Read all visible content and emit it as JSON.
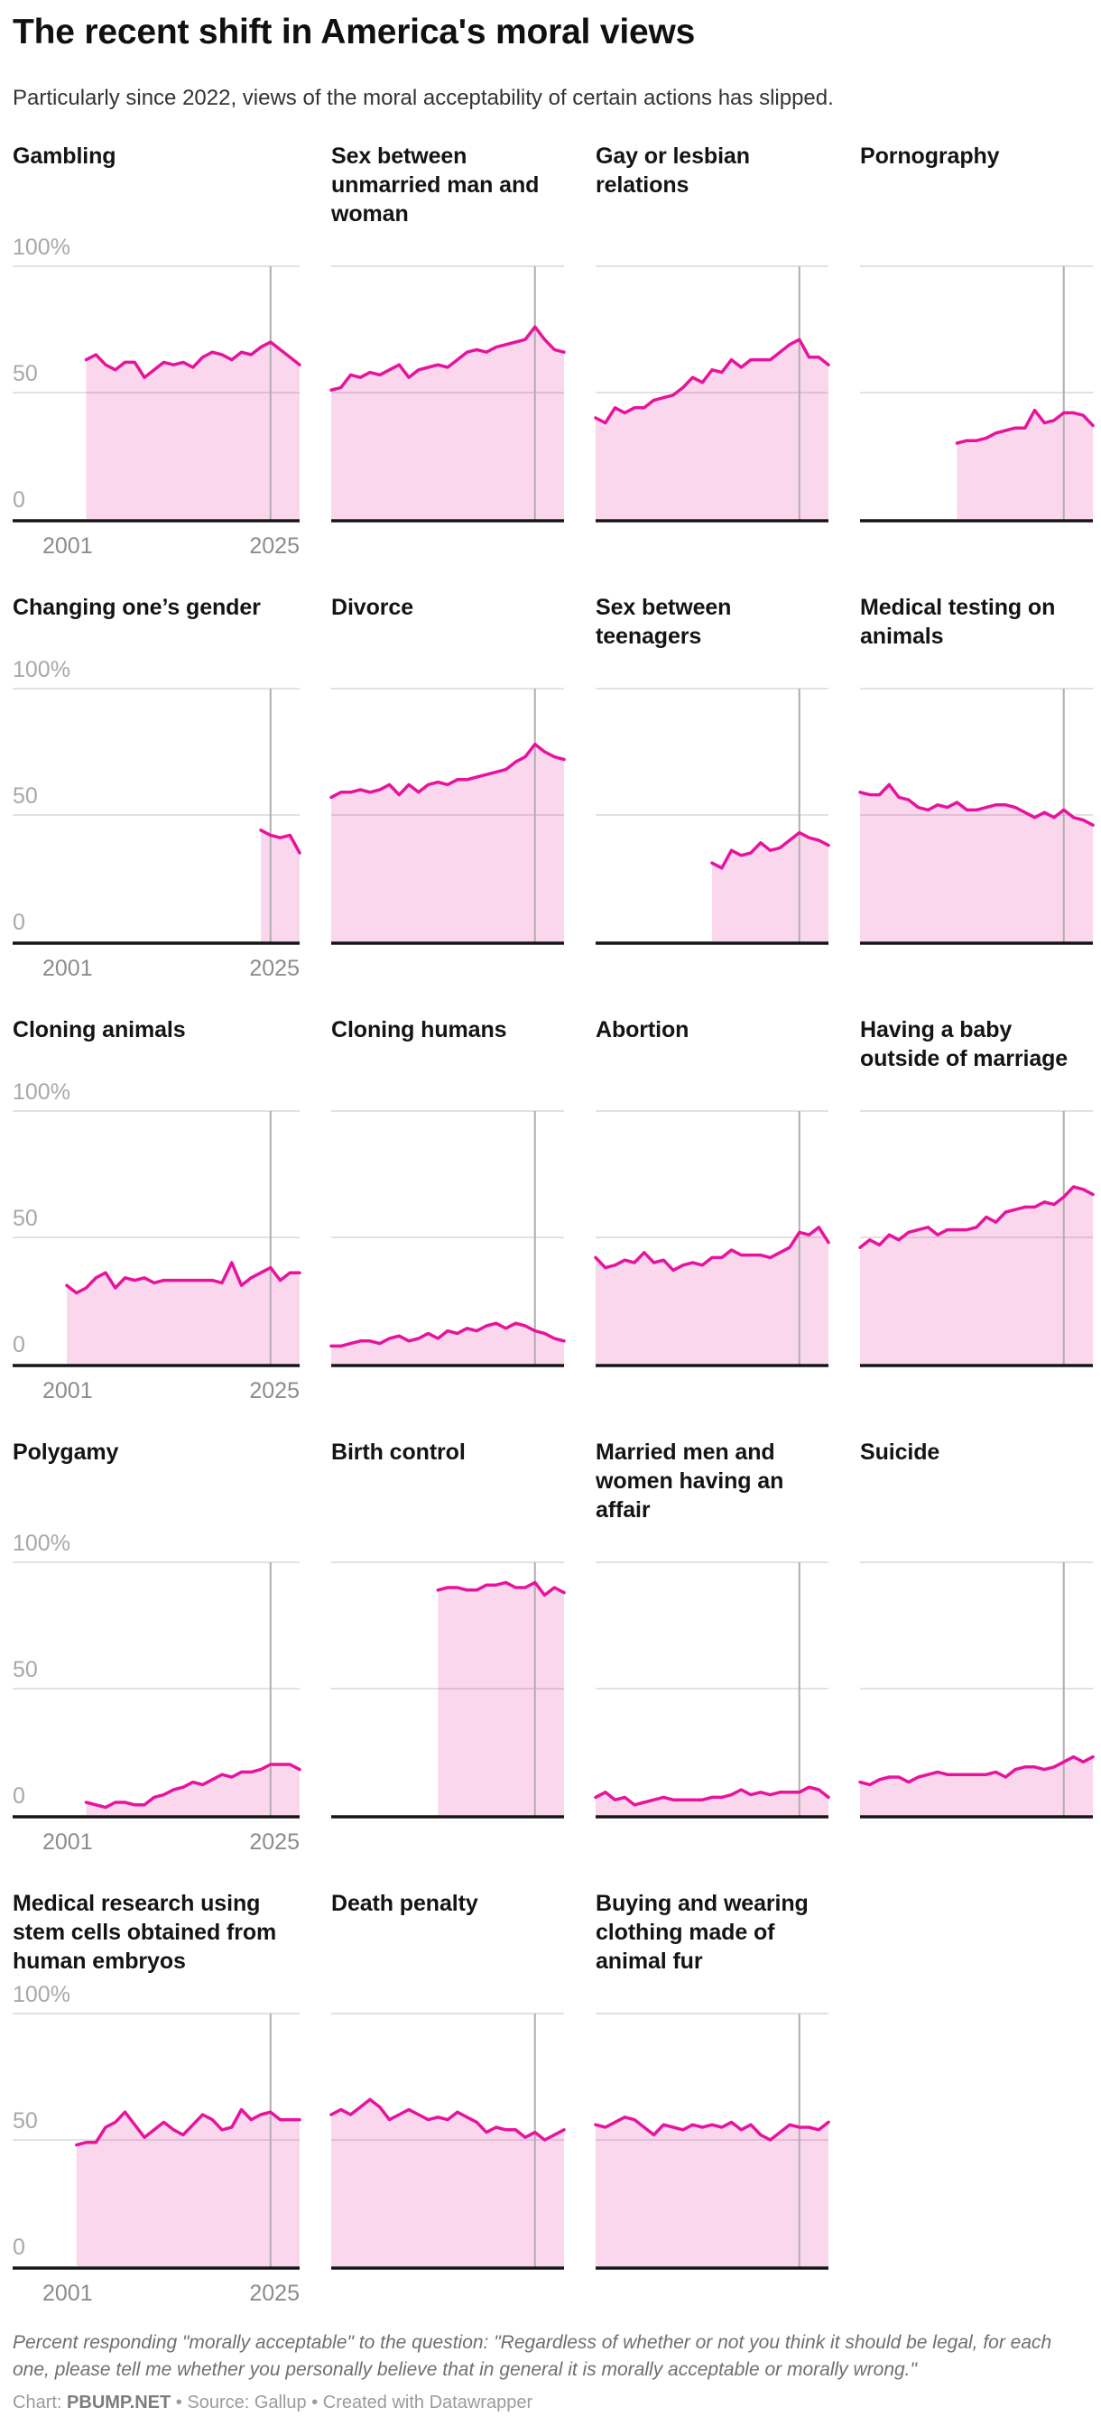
{
  "header": {
    "title": "The recent shift in America's moral views",
    "subtitle": "Particularly since 2022, views of the moral acceptability of certain actions has slipped."
  },
  "footer": {
    "footnote": "Percent responding \"morally acceptable\" to the question: \"Regardless of whether or not you think it should be legal, for each one, please tell me whether you personally believe that in general it is morally acceptable or morally wrong.\"",
    "byline_prefix": "Chart: ",
    "byline_brand": "PBUMP.NET",
    "byline_suffix": " • Source: Gallup • Created with Datawrapper"
  },
  "chart_data": {
    "type": "area",
    "layout": "small-multiples, 5 rows x 4 columns (last row has 3 panels)",
    "x_range": [
      2001,
      2025
    ],
    "ylim": [
      0,
      100
    ],
    "y_tick_labels": [
      "100%",
      "50",
      "0"
    ],
    "x_tick_labels": [
      "2001",
      "2025"
    ],
    "reference_line_year": 2022,
    "grid": "horizontal lines at 0, 50, 100; vertical gray reference line at 2022",
    "colors": {
      "line": "#e8139c",
      "fill": "rgba(232,18,156,0.17)",
      "gridline": "#d8d8d8",
      "reference_line": "#aeaeae",
      "baseline": "#151515",
      "y_labels": "#a8a8a8",
      "x_labels": "#8c8c8c"
    },
    "rows": [
      [
        0,
        1,
        2,
        3
      ],
      [
        4,
        5,
        6,
        7
      ],
      [
        8,
        9,
        10,
        11
      ],
      [
        12,
        13,
        14,
        15
      ],
      [
        16,
        17,
        18
      ]
    ],
    "charts": [
      {
        "title": "Gambling",
        "start_year": 2003,
        "values": [
          63,
          65,
          61,
          59,
          62,
          62,
          56,
          59,
          62,
          61,
          62,
          60,
          64,
          66,
          65,
          63,
          66,
          65,
          68,
          70,
          67,
          64,
          61
        ]
      },
      {
        "title": "Sex between unmarried man and woman",
        "start_year": 2001,
        "values": [
          51,
          52,
          57,
          56,
          58,
          57,
          59,
          61,
          56,
          59,
          60,
          61,
          60,
          63,
          66,
          67,
          66,
          68,
          69,
          70,
          71,
          76,
          71,
          67,
          66
        ]
      },
      {
        "title": "Gay or lesbian relations",
        "start_year": 2001,
        "values": [
          40,
          38,
          44,
          42,
          44,
          44,
          47,
          48,
          49,
          52,
          56,
          54,
          59,
          58,
          63,
          60,
          63,
          63,
          63,
          66,
          69,
          71,
          64,
          64,
          61
        ]
      },
      {
        "title": "Pornography",
        "start_year": 2011,
        "values": [
          30,
          31,
          31,
          32,
          34,
          35,
          36,
          36,
          43,
          38,
          39,
          42,
          42,
          41,
          37
        ]
      },
      {
        "title": "Changing one’s gender",
        "start_year": 2021,
        "values": [
          44,
          42,
          41,
          42,
          35
        ]
      },
      {
        "title": "Divorce",
        "start_year": 2001,
        "values": [
          57,
          59,
          59,
          60,
          59,
          60,
          62,
          58,
          62,
          59,
          62,
          63,
          62,
          64,
          64,
          65,
          66,
          67,
          68,
          71,
          73,
          78,
          75,
          73,
          72
        ]
      },
      {
        "title": "Sex between teenagers",
        "start_year": 2013,
        "values": [
          31,
          29,
          36,
          34,
          35,
          39,
          36,
          37,
          40,
          43,
          41,
          40,
          38
        ]
      },
      {
        "title": "Medical testing on animals",
        "start_year": 2001,
        "values": [
          59,
          58,
          58,
          62,
          57,
          56,
          53,
          52,
          54,
          53,
          55,
          52,
          52,
          53,
          54,
          54,
          53,
          51,
          49,
          51,
          49,
          52,
          49,
          48,
          46
        ]
      },
      {
        "title": "Cloning animals",
        "start_year": 2001,
        "values": [
          31,
          28,
          30,
          34,
          36,
          30,
          34,
          33,
          34,
          32,
          33,
          33,
          33,
          33,
          33,
          33,
          32,
          40,
          31,
          34,
          36,
          38,
          33,
          36,
          36
        ]
      },
      {
        "title": "Cloning humans",
        "start_year": 2001,
        "values": [
          7,
          7,
          8,
          9,
          9,
          8,
          10,
          11,
          9,
          10,
          12,
          10,
          13,
          12,
          14,
          13,
          15,
          16,
          14,
          16,
          15,
          13,
          12,
          10,
          9
        ]
      },
      {
        "title": "Abortion",
        "start_year": 2001,
        "values": [
          42,
          38,
          39,
          41,
          40,
          44,
          40,
          41,
          37,
          39,
          40,
          39,
          42,
          42,
          45,
          43,
          43,
          43,
          42,
          44,
          46,
          52,
          51,
          54,
          48
        ]
      },
      {
        "title": "Having a baby outside of marriage",
        "start_year": 2001,
        "values": [
          46,
          49,
          47,
          51,
          49,
          52,
          53,
          54,
          51,
          53,
          53,
          53,
          54,
          58,
          56,
          60,
          61,
          62,
          62,
          64,
          63,
          66,
          70,
          69,
          67
        ]
      },
      {
        "title": "Polygamy",
        "start_year": 2003,
        "values": [
          5,
          4,
          3,
          5,
          5,
          4,
          4,
          7,
          8,
          10,
          11,
          13,
          12,
          14,
          16,
          15,
          17,
          17,
          18,
          20,
          20,
          20,
          18
        ]
      },
      {
        "title": "Birth control",
        "start_year": 2012,
        "values": [
          89,
          90,
          90,
          89,
          89,
          91,
          91,
          92,
          90,
          90,
          92,
          87,
          90,
          88
        ]
      },
      {
        "title": "Married men and women having an affair",
        "start_year": 2001,
        "values": [
          7,
          9,
          6,
          7,
          4,
          5,
          6,
          7,
          6,
          6,
          6,
          6,
          7,
          7,
          8,
          10,
          8,
          9,
          8,
          9,
          9,
          9,
          11,
          10,
          7
        ]
      },
      {
        "title": "Suicide",
        "start_year": 2001,
        "values": [
          13,
          12,
          14,
          15,
          15,
          13,
          15,
          16,
          17,
          16,
          16,
          16,
          16,
          16,
          17,
          15,
          18,
          19,
          19,
          18,
          19,
          21,
          23,
          21,
          23
        ]
      },
      {
        "title": "Medical research using stem cells obtained from human embryos",
        "start_year": 2002,
        "values": [
          48,
          49,
          49,
          55,
          57,
          61,
          56,
          51,
          54,
          57,
          54,
          52,
          56,
          60,
          58,
          54,
          55,
          62,
          58,
          60,
          61,
          58,
          58,
          58
        ]
      },
      {
        "title": "Death penalty",
        "start_year": 2001,
        "values": [
          60,
          62,
          60,
          63,
          66,
          63,
          58,
          60,
          62,
          60,
          58,
          59,
          58,
          61,
          59,
          57,
          53,
          55,
          54,
          54,
          51,
          53,
          50,
          52,
          54
        ]
      },
      {
        "title": "Buying and wearing clothing made of animal fur",
        "start_year": 2001,
        "values": [
          56,
          55,
          57,
          59,
          58,
          55,
          52,
          56,
          55,
          54,
          56,
          55,
          56,
          55,
          57,
          54,
          56,
          52,
          50,
          53,
          56,
          55,
          55,
          54,
          57
        ]
      }
    ]
  }
}
